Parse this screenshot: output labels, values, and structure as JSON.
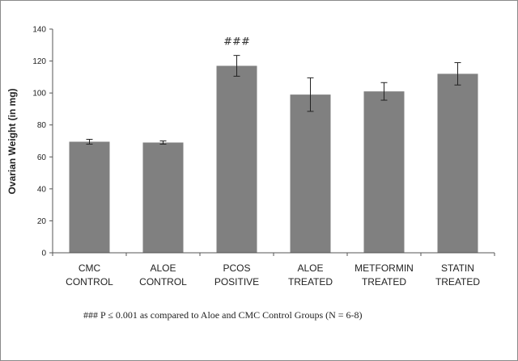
{
  "chart_data": {
    "type": "bar",
    "categories": [
      [
        "CMC",
        "CONTROL"
      ],
      [
        "ALOE",
        "CONTROL"
      ],
      [
        "PCOS",
        "POSITIVE"
      ],
      [
        "ALOE",
        "TREATED"
      ],
      [
        "METFORMIN",
        "TREATED"
      ],
      [
        "STATIN",
        "TREATED"
      ]
    ],
    "values": [
      69.5,
      69,
      117,
      99,
      101,
      112
    ],
    "errors": [
      1.5,
      1,
      6.5,
      10.5,
      5.5,
      7
    ],
    "ylabel": "Ovarian Weight (in mg)",
    "xlabel": "",
    "ylim": [
      0,
      140
    ],
    "yticks": [
      0,
      20,
      40,
      60,
      80,
      100,
      120,
      140
    ],
    "bar_color": "#808080",
    "grid": false,
    "annotations": [
      {
        "text": "###",
        "category_index": 2
      }
    ]
  },
  "footnote": "### P ≤ 0.001 as compared to Aloe and CMC Control Groups (N = 6-8)"
}
